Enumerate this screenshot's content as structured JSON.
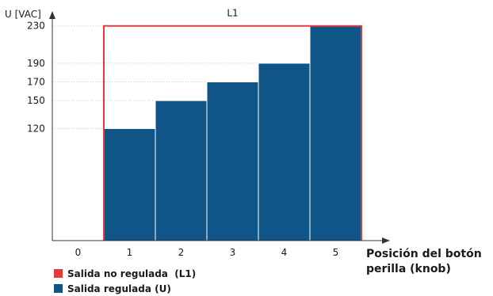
{
  "chart_data": {
    "type": "bar",
    "ylabel": "U [VAC]",
    "xlabel": "Posición del botón\nperilla (knob)",
    "categories": [
      "0",
      "1",
      "2",
      "3",
      "4",
      "5"
    ],
    "y_ticks": [
      120,
      150,
      170,
      190,
      230
    ],
    "ylim": [
      0,
      254
    ],
    "grid": "dotted horizontal",
    "series": [
      {
        "name": "Salida regulada (U)",
        "type": "bar",
        "color": "#0f5587",
        "values": [
          null,
          120,
          150,
          170,
          190,
          230
        ]
      },
      {
        "name": "Salida no regulada  (L1)",
        "type": "step-line",
        "color": "#e53a3a",
        "values": [
          null,
          230,
          230,
          230,
          230,
          230
        ],
        "annotation": "L1"
      }
    ],
    "legend": {
      "position": "bottom-left",
      "items": [
        {
          "label": "Salida no regulada  (L1)",
          "color": "#e53a3a"
        },
        {
          "label": "Salida regulada (U)",
          "color": "#0f5587"
        }
      ]
    }
  }
}
